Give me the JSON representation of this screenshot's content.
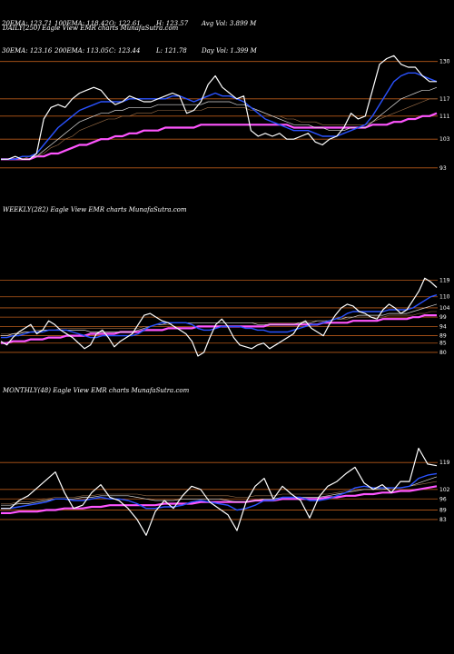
{
  "stats": {
    "row1": [
      "20EMA: 123.71",
      "100EMA: 118.42",
      "O: 122.61",
      "H: 123.57",
      "Avg Vol: 3.899 M"
    ],
    "row2": [
      "30EMA: 123.16",
      "200EMA: 113.05",
      "C: 123.44",
      "L: 121.78",
      "Day Vol: 1.399 M"
    ]
  },
  "colors": {
    "price": "#ffffff",
    "ema_fast": "#2a52ff",
    "ema_mid": "#d8d8d8",
    "ema_slow": "#a0724a",
    "ema_long": "#ff55ff",
    "hline": "#b85a1a"
  },
  "chart_data": [
    {
      "type": "line",
      "title": "DAILY(250) Eagle   View  EMR charts MunafaSutra.com",
      "ylim": [
        92,
        134
      ],
      "y_ticks": [
        130,
        117,
        111,
        103,
        93
      ],
      "series": [
        {
          "name": "",
          "values": [
            96,
            96,
            97,
            96,
            96,
            98,
            110,
            114,
            115,
            114,
            117,
            119,
            120,
            121,
            120,
            117,
            115,
            116,
            118,
            117,
            116,
            116,
            117,
            118,
            119,
            118,
            112,
            113,
            116,
            122,
            125,
            121,
            119,
            117,
            118,
            106,
            104,
            105,
            104,
            105,
            103,
            103,
            104,
            105,
            102,
            101,
            103,
            104,
            107,
            112,
            110,
            111,
            120,
            129,
            131,
            132,
            129,
            128,
            128,
            125,
            123,
            123
          ]
        },
        {
          "name": "",
          "values": [
            96,
            96,
            96,
            97,
            97,
            98,
            101,
            104,
            107,
            109,
            111,
            113,
            114,
            115,
            116,
            116,
            116,
            116,
            117,
            117,
            117,
            117,
            117,
            117,
            118,
            118,
            117,
            116,
            117,
            118,
            119,
            118,
            118,
            117,
            116,
            114,
            112,
            110,
            109,
            108,
            107,
            106,
            106,
            106,
            105,
            104,
            104,
            104,
            105,
            106,
            107,
            108,
            111,
            115,
            119,
            123,
            125,
            126,
            126,
            125,
            124,
            123
          ]
        },
        {
          "name": "",
          "values": [
            96,
            96,
            96,
            97,
            97,
            97,
            99,
            101,
            103,
            105,
            107,
            109,
            110,
            111,
            112,
            112,
            113,
            113,
            114,
            114,
            114,
            114,
            115,
            115,
            115,
            115,
            115,
            115,
            115,
            116,
            116,
            116,
            116,
            115,
            115,
            114,
            113,
            112,
            111,
            110,
            109,
            108,
            108,
            108,
            107,
            107,
            106,
            106,
            106,
            107,
            107,
            107,
            109,
            111,
            113,
            115,
            117,
            118,
            119,
            120,
            120,
            121
          ]
        },
        {
          "name": "",
          "values": [
            96,
            96,
            96,
            96,
            97,
            97,
            98,
            100,
            101,
            103,
            104,
            106,
            107,
            108,
            109,
            110,
            110,
            111,
            111,
            112,
            112,
            112,
            113,
            113,
            113,
            113,
            113,
            113,
            113,
            114,
            114,
            114,
            114,
            114,
            114,
            113,
            113,
            112,
            111,
            111,
            110,
            110,
            109,
            109,
            109,
            108,
            108,
            108,
            108,
            108,
            108,
            108,
            109,
            110,
            111,
            112,
            113,
            114,
            115,
            116,
            117,
            117
          ]
        },
        {
          "name": "",
          "values": [
            96,
            96,
            96,
            96,
            96,
            97,
            97,
            98,
            98,
            99,
            100,
            101,
            101,
            102,
            103,
            103,
            104,
            104,
            105,
            105,
            106,
            106,
            106,
            107,
            107,
            107,
            107,
            107,
            108,
            108,
            108,
            108,
            108,
            108,
            108,
            108,
            108,
            108,
            108,
            108,
            108,
            107,
            107,
            107,
            107,
            107,
            107,
            107,
            107,
            107,
            107,
            107,
            108,
            108,
            108,
            109,
            109,
            110,
            110,
            111,
            111,
            112
          ]
        }
      ]
    },
    {
      "type": "line",
      "title": "WEEKLY(282) Eagle   View  EMR charts MunafaSutra.com",
      "ylim": [
        78,
        128
      ],
      "y_ticks": [
        119,
        110,
        104,
        99,
        94,
        89,
        85,
        80
      ],
      "series": [
        {
          "name": "",
          "values": [
            86,
            84,
            88,
            91,
            93,
            95,
            90,
            92,
            97,
            95,
            92,
            90,
            88,
            85,
            82,
            84,
            90,
            92,
            88,
            83,
            86,
            88,
            90,
            95,
            100,
            101,
            99,
            97,
            96,
            94,
            92,
            90,
            86,
            78,
            80,
            88,
            95,
            98,
            94,
            88,
            84,
            83,
            82,
            84,
            85,
            82,
            84,
            86,
            88,
            90,
            95,
            97,
            93,
            91,
            89,
            95,
            100,
            104,
            106,
            105,
            102,
            101,
            99,
            98,
            103,
            106,
            104,
            101,
            103,
            108,
            113,
            120,
            118,
            115
          ]
        },
        {
          "name": "",
          "values": [
            88,
            88,
            89,
            89,
            90,
            91,
            91,
            91,
            92,
            92,
            92,
            92,
            91,
            90,
            89,
            88,
            88,
            89,
            89,
            89,
            89,
            89,
            89,
            90,
            92,
            94,
            95,
            96,
            96,
            96,
            96,
            96,
            95,
            93,
            92,
            92,
            93,
            94,
            94,
            94,
            94,
            93,
            93,
            92,
            92,
            91,
            91,
            91,
            91,
            92,
            93,
            94,
            95,
            95,
            96,
            97,
            98,
            99,
            101,
            102,
            102,
            102,
            102,
            102,
            102,
            103,
            103,
            103,
            103,
            104,
            106,
            108,
            110,
            111
          ]
        },
        {
          "name": "",
          "values": [
            89,
            89,
            90,
            90,
            91,
            91,
            91,
            92,
            92,
            92,
            92,
            92,
            92,
            92,
            92,
            91,
            91,
            91,
            91,
            91,
            91,
            91,
            91,
            92,
            93,
            94,
            95,
            95,
            96,
            96,
            96,
            96,
            96,
            96,
            96,
            96,
            96,
            96,
            96,
            96,
            96,
            96,
            96,
            95,
            95,
            95,
            95,
            95,
            95,
            95,
            96,
            96,
            96,
            97,
            97,
            97,
            98,
            98,
            99,
            99,
            100,
            100,
            100,
            100,
            100,
            101,
            101,
            101,
            101,
            102,
            103,
            104,
            105,
            106
          ]
        },
        {
          "name": "",
          "values": [
            90,
            90,
            90,
            91,
            91,
            91,
            92,
            92,
            92,
            92,
            93,
            93,
            93,
            93,
            93,
            93,
            93,
            93,
            93,
            93,
            93,
            93,
            93,
            93,
            94,
            94,
            95,
            95,
            95,
            96,
            96,
            96,
            96,
            96,
            96,
            96,
            96,
            96,
            96,
            96,
            96,
            96,
            96,
            96,
            96,
            96,
            96,
            96,
            96,
            96,
            96,
            97,
            97,
            97,
            97,
            97,
            98,
            98,
            98,
            99,
            99,
            99,
            99,
            99,
            99,
            100,
            100,
            100,
            100,
            100,
            101,
            101,
            102,
            102
          ]
        },
        {
          "name": "",
          "values": [
            85,
            85,
            86,
            86,
            86,
            87,
            87,
            87,
            88,
            88,
            88,
            89,
            89,
            89,
            89,
            90,
            90,
            90,
            90,
            90,
            91,
            91,
            91,
            91,
            92,
            92,
            92,
            92,
            93,
            93,
            93,
            93,
            93,
            94,
            94,
            94,
            94,
            94,
            94,
            94,
            94,
            94,
            94,
            94,
            94,
            95,
            95,
            95,
            95,
            95,
            95,
            95,
            95,
            95,
            96,
            96,
            96,
            96,
            96,
            97,
            97,
            97,
            97,
            97,
            98,
            98,
            98,
            98,
            98,
            99,
            99,
            100,
            100,
            100
          ]
        }
      ]
    },
    {
      "type": "line",
      "title": "MONTHLY(48) Eagle   View  EMR charts MunafaSutra.com",
      "ylim": [
        60,
        130
      ],
      "y_ticks": [
        119,
        102,
        96,
        89,
        83
      ],
      "series": [
        {
          "name": "",
          "values": [
            90,
            90,
            95,
            98,
            103,
            108,
            113,
            100,
            90,
            92,
            100,
            105,
            97,
            95,
            90,
            83,
            73,
            88,
            95,
            90,
            98,
            104,
            102,
            94,
            90,
            86,
            76,
            94,
            104,
            109,
            96,
            104,
            99,
            95,
            84,
            97,
            104,
            107,
            112,
            116,
            106,
            102,
            105,
            100,
            107,
            107,
            128,
            118,
            117
          ]
        },
        {
          "name": "",
          "values": [
            90,
            90,
            91,
            92,
            93,
            94,
            96,
            96,
            95,
            95,
            96,
            97,
            96,
            96,
            95,
            93,
            90,
            90,
            91,
            91,
            92,
            94,
            95,
            94,
            93,
            92,
            89,
            90,
            92,
            95,
            95,
            97,
            97,
            97,
            95,
            95,
            96,
            98,
            100,
            103,
            104,
            103,
            103,
            103,
            103,
            104,
            109,
            111,
            112
          ]
        },
        {
          "name": "",
          "values": [
            92,
            92,
            93,
            93,
            94,
            95,
            96,
            96,
            96,
            97,
            97,
            98,
            98,
            98,
            98,
            97,
            96,
            95,
            95,
            95,
            96,
            96,
            96,
            96,
            96,
            95,
            94,
            94,
            95,
            96,
            96,
            97,
            97,
            97,
            97,
            97,
            98,
            99,
            100,
            101,
            102,
            102,
            102,
            103,
            103,
            104,
            106,
            108,
            110
          ]
        },
        {
          "name": "",
          "values": [
            93,
            93,
            94,
            94,
            95,
            96,
            97,
            97,
            97,
            98,
            98,
            99,
            99,
            99,
            99,
            99,
            98,
            98,
            98,
            98,
            98,
            98,
            98,
            98,
            98,
            98,
            97,
            97,
            98,
            98,
            98,
            99,
            99,
            99,
            99,
            99,
            99,
            100,
            101,
            101,
            102,
            102,
            103,
            103,
            103,
            104,
            105,
            106,
            107
          ]
        },
        {
          "name": "",
          "values": [
            87,
            87,
            88,
            88,
            88,
            89,
            89,
            90,
            90,
            90,
            91,
            91,
            92,
            92,
            92,
            92,
            92,
            92,
            93,
            93,
            93,
            93,
            94,
            94,
            94,
            94,
            94,
            94,
            95,
            95,
            95,
            96,
            96,
            96,
            96,
            96,
            97,
            97,
            98,
            98,
            99,
            99,
            100,
            100,
            101,
            101,
            102,
            103,
            104
          ]
        }
      ]
    }
  ]
}
